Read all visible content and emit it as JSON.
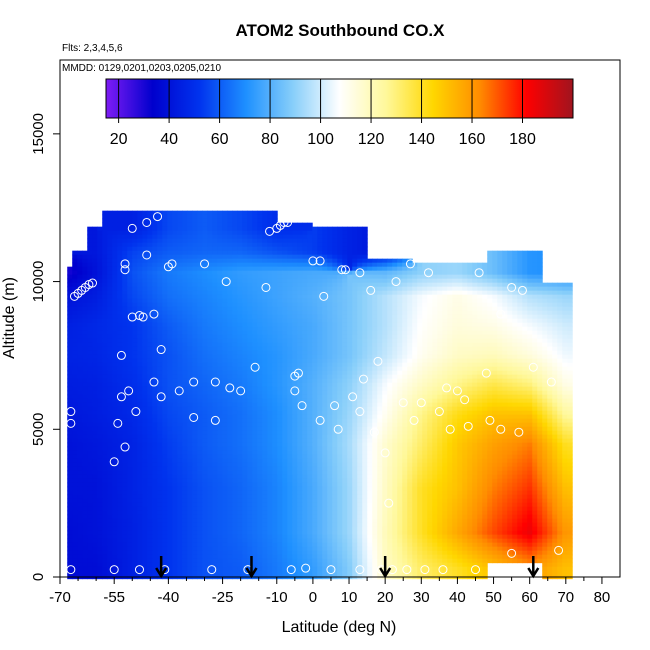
{
  "chart_data": {
    "type": "heatmap",
    "title": "ATOM2 Southbound CO.X",
    "notes": {
      "flights": "Flts: 2,3,4,5,6",
      "dates": "MMDD: 0129,0201,0203,0205,0210"
    },
    "xlabel": "Latitude (deg N)",
    "ylabel": "Altitude (m)",
    "xlim": [
      -70,
      85
    ],
    "ylim": [
      0,
      17500
    ],
    "x_ticks": [
      -70,
      -55,
      -40,
      -25,
      -10,
      0,
      10,
      20,
      30,
      40,
      50,
      60,
      70,
      80
    ],
    "x_minor_ticks": [
      -65,
      -60,
      -50,
      -45,
      -35,
      -30,
      -20,
      -15,
      -5,
      5,
      15,
      25,
      35,
      45,
      55,
      65,
      75
    ],
    "y_ticks": [
      0,
      5000,
      10000,
      15000
    ],
    "colorbar": {
      "ticks": [
        20,
        40,
        60,
        80,
        100,
        120,
        140,
        160,
        180
      ],
      "range": [
        15,
        200
      ],
      "colors": [
        "#7f1cf5",
        "#0000cd",
        "#0033ee",
        "#1e90ff",
        "#87cefa",
        "#ffffff",
        "#fff89a",
        "#ffd700",
        "#ff8c00",
        "#ff0000",
        "#a0141e"
      ]
    },
    "grid": false,
    "field": {
      "latitudes": [
        -68,
        -60,
        -50,
        -40,
        -30,
        -20,
        -10,
        0,
        10,
        20,
        30,
        40,
        50,
        60,
        70
      ],
      "altitudes": [
        250,
        1500,
        3000,
        4500,
        5500,
        6500,
        7500,
        8500,
        9500,
        10300,
        11000,
        11800
      ],
      "values": [
        [
          38,
          38,
          45,
          52,
          58,
          60,
          66,
          74,
          88,
          118,
          132,
          140,
          150,
          160,
          150
        ],
        [
          38,
          40,
          45,
          52,
          58,
          62,
          68,
          78,
          92,
          120,
          140,
          156,
          172,
          185,
          160
        ],
        [
          40,
          40,
          46,
          52,
          58,
          62,
          68,
          78,
          92,
          118,
          140,
          150,
          165,
          175,
          150
        ],
        [
          40,
          42,
          46,
          54,
          60,
          64,
          70,
          80,
          94,
          116,
          132,
          148,
          158,
          165,
          140
        ],
        [
          42,
          44,
          48,
          56,
          60,
          64,
          70,
          80,
          92,
          110,
          128,
          142,
          150,
          150,
          125
        ],
        [
          44,
          45,
          50,
          58,
          62,
          66,
          72,
          80,
          90,
          106,
          118,
          128,
          136,
          130,
          112
        ],
        [
          46,
          47,
          52,
          58,
          64,
          68,
          72,
          78,
          86,
          98,
          110,
          118,
          120,
          114,
          105
        ],
        [
          45,
          48,
          52,
          60,
          66,
          70,
          74,
          78,
          86,
          96,
          108,
          114,
          112,
          106,
          100
        ],
        [
          40,
          44,
          56,
          64,
          68,
          72,
          76,
          80,
          86,
          96,
          106,
          112,
          106,
          96,
          92
        ],
        [
          30,
          40,
          58,
          66,
          70,
          74,
          76,
          78,
          null,
          82,
          90,
          92,
          84,
          72,
          70
        ],
        [
          null,
          42,
          55,
          60,
          62,
          62,
          58,
          54,
          46,
          40,
          null,
          null,
          null,
          null,
          null
        ],
        [
          null,
          null,
          45,
          56,
          60,
          56,
          50,
          null,
          null,
          null,
          null,
          null,
          null,
          null,
          null
        ]
      ]
    },
    "sample_points": [
      [
        -67,
        250
      ],
      [
        -67,
        5200
      ],
      [
        -67,
        5600
      ],
      [
        -66,
        9500
      ],
      [
        -65,
        9600
      ],
      [
        -64,
        9700
      ],
      [
        -63,
        9800
      ],
      [
        -62,
        9900
      ],
      [
        -61,
        9950
      ],
      [
        -55,
        250
      ],
      [
        -55,
        3900
      ],
      [
        -54,
        5200
      ],
      [
        -53,
        7500
      ],
      [
        -53,
        6100
      ],
      [
        -52,
        4400
      ],
      [
        -52,
        10400
      ],
      [
        -52,
        10600
      ],
      [
        -51,
        6300
      ],
      [
        -50,
        8800
      ],
      [
        -50,
        11800
      ],
      [
        -49,
        5600
      ],
      [
        -48,
        8850
      ],
      [
        -48,
        250
      ],
      [
        -47,
        8800
      ],
      [
        -46,
        12000
      ],
      [
        -46,
        10900
      ],
      [
        -44,
        8900
      ],
      [
        -44,
        6600
      ],
      [
        -43,
        12200
      ],
      [
        -42,
        7700
      ],
      [
        -42,
        6100
      ],
      [
        -41,
        250
      ],
      [
        -40,
        10500
      ],
      [
        -39,
        10600
      ],
      [
        -37,
        6300
      ],
      [
        -33,
        5400
      ],
      [
        -33,
        6600
      ],
      [
        -30,
        10600
      ],
      [
        -28,
        250
      ],
      [
        -27,
        6600
      ],
      [
        -27,
        5300
      ],
      [
        -24,
        10000
      ],
      [
        -23,
        6400
      ],
      [
        -20,
        6300
      ],
      [
        -18,
        250
      ],
      [
        -16,
        7100
      ],
      [
        -13,
        9800
      ],
      [
        -12,
        11700
      ],
      [
        -10,
        11800
      ],
      [
        -9,
        11900
      ],
      [
        -8,
        12000
      ],
      [
        -7,
        12000
      ],
      [
        -6,
        250
      ],
      [
        -5,
        6300
      ],
      [
        -5,
        6800
      ],
      [
        -4,
        6900
      ],
      [
        -3,
        5800
      ],
      [
        -2,
        300
      ],
      [
        0,
        10700
      ],
      [
        2,
        10700
      ],
      [
        2,
        5300
      ],
      [
        3,
        9500
      ],
      [
        5,
        250
      ],
      [
        6,
        5800
      ],
      [
        7,
        5000
      ],
      [
        8,
        10400
      ],
      [
        9,
        10400
      ],
      [
        11,
        6100
      ],
      [
        13,
        250
      ],
      [
        13,
        10300
      ],
      [
        13,
        5600
      ],
      [
        14,
        6700
      ],
      [
        16,
        9700
      ],
      [
        17,
        4900
      ],
      [
        18,
        7300
      ],
      [
        19,
        250
      ],
      [
        20,
        4200
      ],
      [
        21,
        2500
      ],
      [
        22,
        250
      ],
      [
        23,
        10000
      ],
      [
        25,
        5900
      ],
      [
        26,
        250
      ],
      [
        27,
        10600
      ],
      [
        28,
        5300
      ],
      [
        30,
        5900
      ],
      [
        31,
        250
      ],
      [
        32,
        10300
      ],
      [
        35,
        5600
      ],
      [
        36,
        250
      ],
      [
        37,
        6400
      ],
      [
        38,
        5000
      ],
      [
        40,
        6300
      ],
      [
        42,
        6000
      ],
      [
        43,
        5100
      ],
      [
        45,
        250
      ],
      [
        46,
        10300
      ],
      [
        48,
        6900
      ],
      [
        49,
        5300
      ],
      [
        52,
        5000
      ],
      [
        52,
        8900
      ],
      [
        55,
        9800
      ],
      [
        55,
        800
      ],
      [
        57,
        4900
      ],
      [
        58,
        9700
      ],
      [
        59,
        11300
      ],
      [
        61,
        7100
      ],
      [
        62,
        11200
      ],
      [
        66,
        6600
      ],
      [
        68,
        900
      ]
    ],
    "flight_arrows_latitude": [
      -42,
      -17,
      20,
      61
    ]
  }
}
